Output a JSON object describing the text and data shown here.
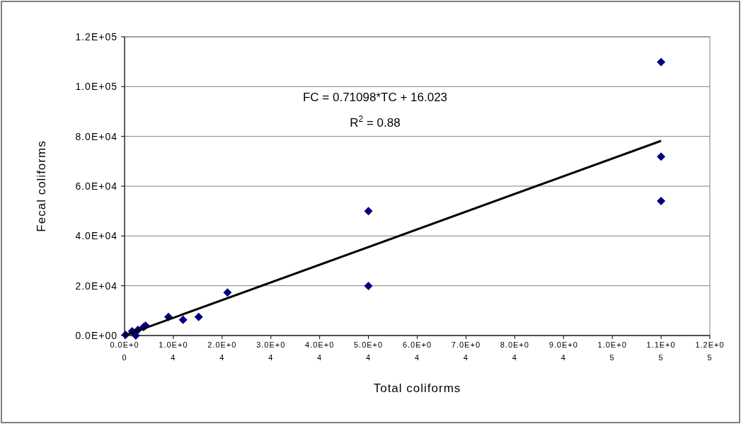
{
  "chart_data": {
    "type": "scatter",
    "xlabel": "Total coliforms",
    "ylabel": "Fecal coliforms",
    "marker": "diamond",
    "grid": "y",
    "annotations": [
      "FC = 0.71098*TC + 16.023",
      "R$^{2}$ = 0.88"
    ],
    "xlim": [
      0,
      120000
    ],
    "ylim": [
      0,
      120000
    ],
    "xticks": [
      {
        "value": 0,
        "label": "0.0E+00"
      },
      {
        "value": 10000,
        "label": "1.0E+04"
      },
      {
        "value": 20000,
        "label": "2.0E+04"
      },
      {
        "value": 30000,
        "label": "3.0E+04"
      },
      {
        "value": 40000,
        "label": "4.0E+04"
      },
      {
        "value": 50000,
        "label": "5.0E+04"
      },
      {
        "value": 60000,
        "label": "6.0E+04"
      },
      {
        "value": 70000,
        "label": "7.0E+04"
      },
      {
        "value": 80000,
        "label": "8.0E+04"
      },
      {
        "value": 90000,
        "label": "9.0E+04"
      },
      {
        "value": 100000,
        "label": "1.0E+05"
      },
      {
        "value": 110000,
        "label": "1.1E+05"
      },
      {
        "value": 120000,
        "label": "1.2E+05"
      }
    ],
    "yticks": [
      {
        "value": 0,
        "label": "0.0E+00"
      },
      {
        "value": 20000,
        "label": "2.0E+04"
      },
      {
        "value": 40000,
        "label": "4.0E+04"
      },
      {
        "value": 60000,
        "label": "6.0E+04"
      },
      {
        "value": 80000,
        "label": "8.0E+04"
      },
      {
        "value": 100000,
        "label": "1.0E+05"
      },
      {
        "value": 120000,
        "label": "1.2E+05"
      }
    ],
    "series": [
      {
        "color": "#000080",
        "x": [
          200,
          1550,
          2300,
          2750,
          3900,
          4300,
          9000,
          12000,
          15200,
          21100,
          50000,
          50000,
          110000,
          110000,
          110000
        ],
        "values": [
          300,
          1700,
          0,
          2300,
          3400,
          4000,
          7500,
          6300,
          7500,
          17300,
          50000,
          19900,
          109800,
          71900,
          54000
        ]
      },
      {
        "type": "line",
        "color": "#000000",
        "marker": "none",
        "x": [
          0,
          110000
        ],
        "values": [
          0,
          78200
        ]
      }
    ]
  }
}
